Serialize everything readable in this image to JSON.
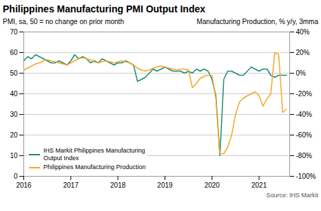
{
  "chart_data": {
    "type": "line",
    "title": "Philippines Manufacturing PMI Output Index",
    "ylabel": "PMI, sa, 50 = no change on prior month",
    "y2label": "Manufacturing Production, % y/y, 3mma",
    "annotations": [
      "Source: IHS Markit"
    ],
    "x": [
      2016.0,
      2016.083,
      2016.167,
      2016.25,
      2016.333,
      2016.417,
      2016.5,
      2016.583,
      2016.667,
      2016.75,
      2016.833,
      2016.917,
      2017.0,
      2017.083,
      2017.167,
      2017.25,
      2017.333,
      2017.417,
      2017.5,
      2017.583,
      2017.667,
      2017.75,
      2017.833,
      2017.917,
      2018.0,
      2018.083,
      2018.167,
      2018.25,
      2018.333,
      2018.417,
      2018.5,
      2018.583,
      2018.667,
      2018.75,
      2018.833,
      2018.917,
      2019.0,
      2019.083,
      2019.167,
      2019.25,
      2019.333,
      2019.417,
      2019.5,
      2019.583,
      2019.667,
      2019.75,
      2019.833,
      2019.917,
      2020.0,
      2020.083,
      2020.167,
      2020.25,
      2020.333,
      2020.417,
      2020.5,
      2020.583,
      2020.667,
      2020.75,
      2020.833,
      2020.917,
      2021.0,
      2021.083,
      2021.167,
      2021.25,
      2021.333,
      2021.417,
      2021.5,
      2021.583
    ],
    "series": [
      {
        "name": "IHS Markit Philippines Manufacturing\nOutput Index",
        "color": "#1a8a78",
        "values": [
          56,
          58,
          57,
          59,
          58,
          57,
          56,
          55,
          55,
          56,
          55,
          54,
          56,
          59,
          57,
          58,
          57,
          55,
          56,
          55,
          57,
          56,
          55,
          54,
          55,
          55,
          56,
          55,
          54,
          46,
          47,
          48,
          50,
          52,
          51,
          52,
          53,
          52,
          51,
          51,
          51,
          50,
          51,
          50,
          52,
          51,
          52,
          51,
          47,
          39,
          10,
          47,
          51,
          51,
          50,
          49,
          49,
          51,
          53,
          52,
          51,
          52,
          52,
          49,
          48,
          49,
          49,
          49
        ]
      },
      {
        "name": "Philippines Manufacturing Production",
        "color": "#f5a623",
        "axis": "y2",
        "values": [
          3,
          5,
          7,
          9,
          10,
          12,
          13,
          12,
          11,
          10,
          9,
          8,
          10,
          12,
          14,
          15,
          14,
          13,
          11,
          10,
          11,
          12,
          11,
          10,
          11,
          12,
          11,
          10,
          8,
          5,
          3,
          2,
          3,
          5,
          6,
          7,
          6,
          5,
          4,
          3,
          4,
          4,
          3,
          -14,
          -10,
          -5,
          -3,
          -2,
          -2,
          -25,
          -78,
          -78,
          -72,
          -60,
          -40,
          -28,
          -24,
          -22,
          -20,
          -18,
          -22,
          -32,
          -25,
          -20,
          20,
          18,
          -38,
          -35
        ]
      }
    ],
    "xlim": [
      2016.0,
      2021.65
    ],
    "xticks": [
      2016,
      2017,
      2018,
      2019,
      2020,
      2021
    ],
    "ylim": [
      0,
      70
    ],
    "yticks": [
      0,
      10,
      20,
      30,
      40,
      50,
      60,
      70
    ],
    "y2lim": [
      -100,
      40
    ],
    "y2ticks": [
      {
        "value": -100,
        "label": "-100%"
      },
      {
        "value": -80,
        "label": "-80%"
      },
      {
        "value": -60,
        "label": "-60%"
      },
      {
        "value": -40,
        "label": "-40%"
      },
      {
        "value": -20,
        "label": "-20%"
      },
      {
        "value": 0,
        "label": "0%"
      },
      {
        "value": 20,
        "label": "20%"
      },
      {
        "value": 40,
        "label": "40%"
      }
    ],
    "grid": true,
    "legend": "lower left"
  }
}
